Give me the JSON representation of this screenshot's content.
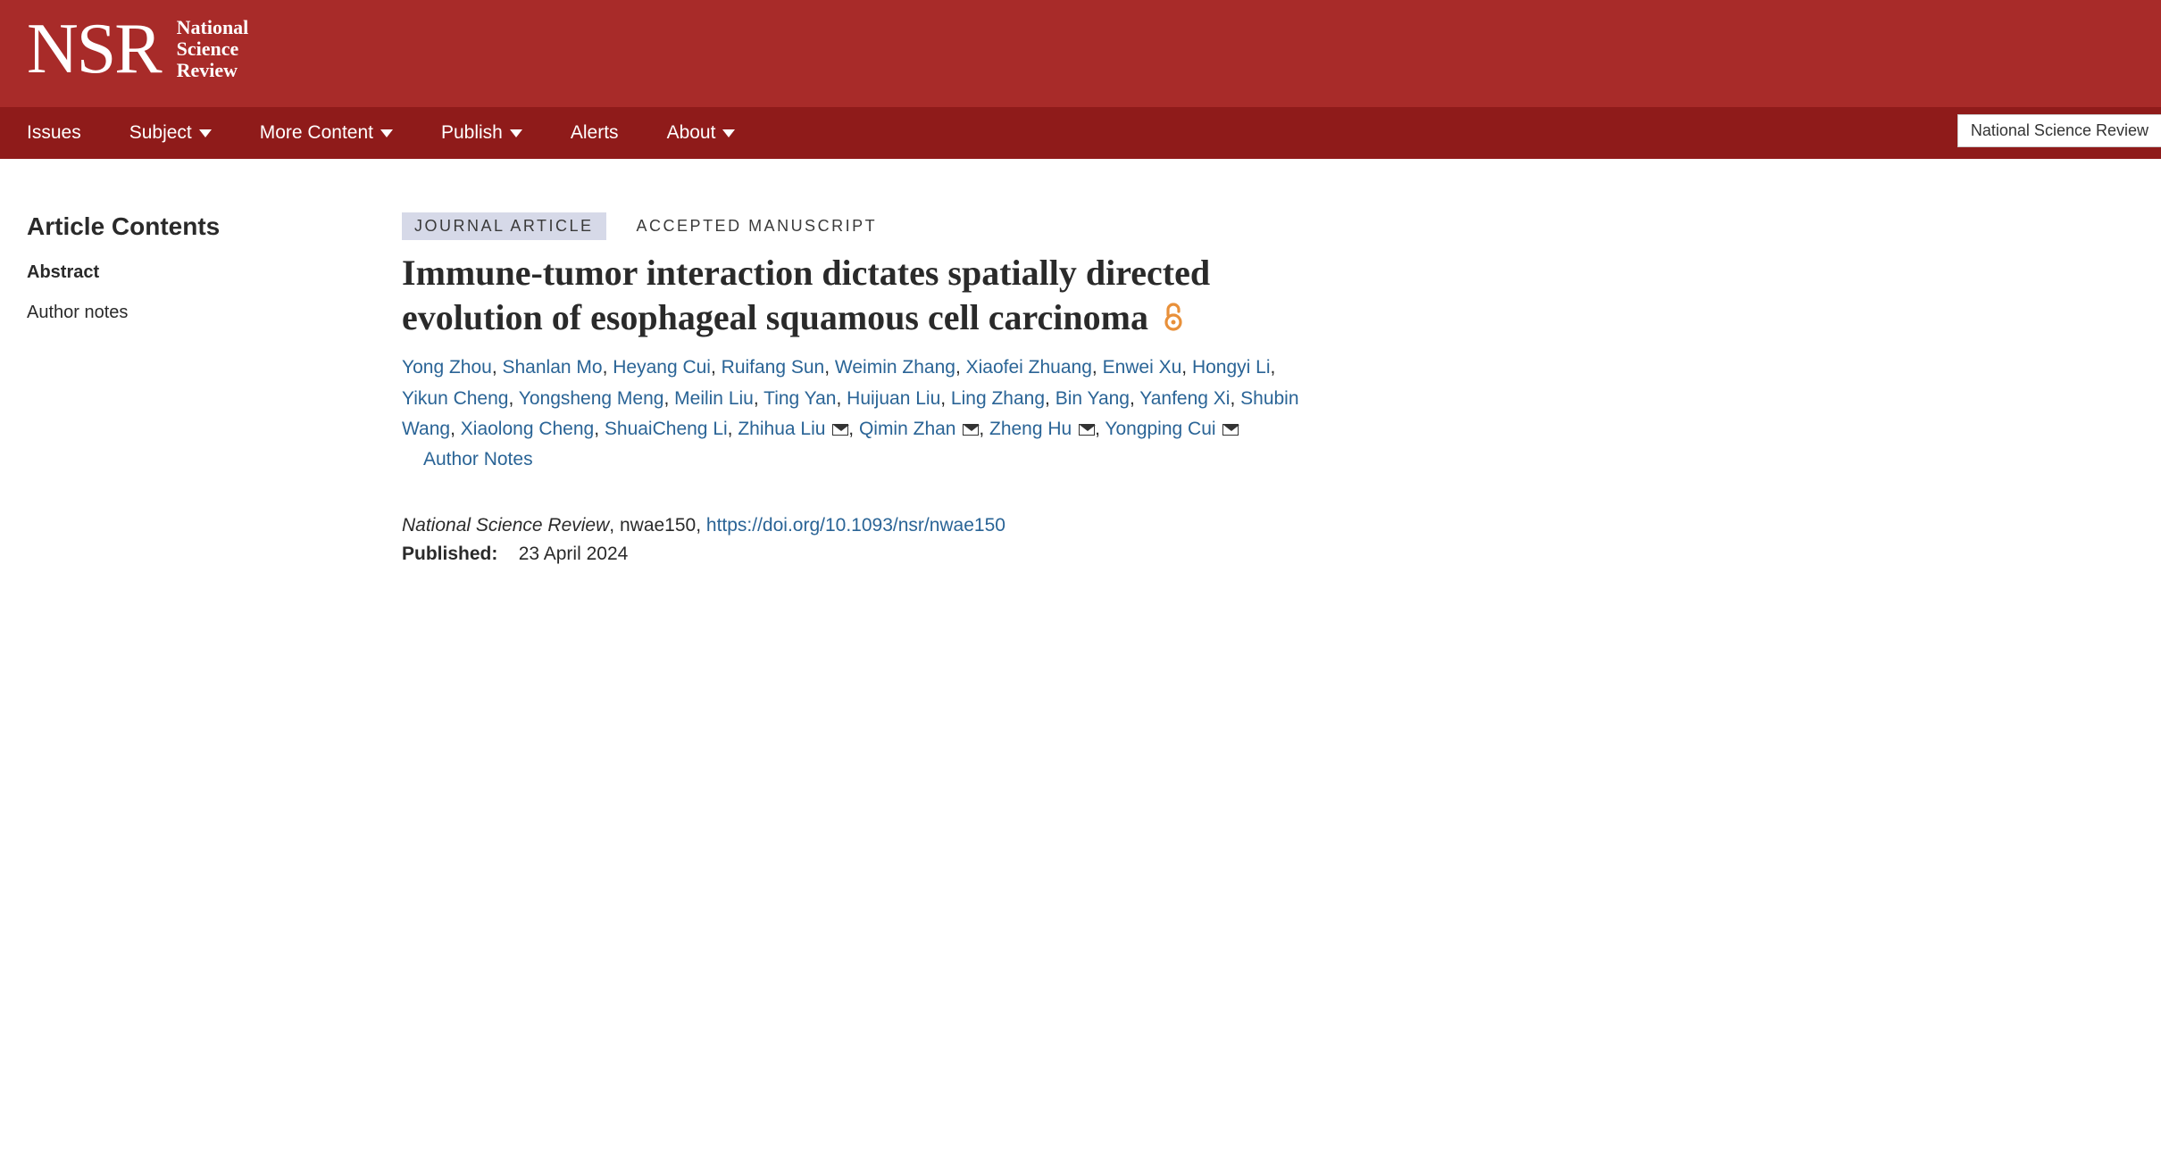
{
  "brand": {
    "mark": "NSR",
    "line1": "National",
    "line2": "Science",
    "line3": "Review"
  },
  "nav": {
    "issues": "Issues",
    "subject": "Subject",
    "more": "More Content",
    "publish": "Publish",
    "alerts": "Alerts",
    "about": "About",
    "search_context": "National Science Review"
  },
  "sidebar": {
    "heading": "Article Contents",
    "abstract": "Abstract",
    "author_notes": "Author notes"
  },
  "article": {
    "badge_type": "JOURNAL ARTICLE",
    "badge_status": "ACCEPTED MANUSCRIPT",
    "title": "Immune-tumor interaction dictates spatially directed evolution of esophageal squamous cell carcinoma",
    "authors": [
      {
        "name": "Yong Zhou",
        "mail": false
      },
      {
        "name": "Shanlan Mo",
        "mail": false
      },
      {
        "name": "Heyang Cui",
        "mail": false
      },
      {
        "name": "Ruifang Sun",
        "mail": false
      },
      {
        "name": "Weimin Zhang",
        "mail": false
      },
      {
        "name": "Xiaofei Zhuang",
        "mail": false
      },
      {
        "name": "Enwei Xu",
        "mail": false
      },
      {
        "name": "Hongyi Li",
        "mail": false
      },
      {
        "name": "Yikun Cheng",
        "mail": false
      },
      {
        "name": "Yongsheng Meng",
        "mail": false
      },
      {
        "name": "Meilin Liu",
        "mail": false
      },
      {
        "name": "Ting Yan",
        "mail": false
      },
      {
        "name": "Huijuan Liu",
        "mail": false
      },
      {
        "name": "Ling Zhang",
        "mail": false
      },
      {
        "name": "Bin Yang",
        "mail": false
      },
      {
        "name": "Yanfeng Xi",
        "mail": false
      },
      {
        "name": "Shubin Wang",
        "mail": false
      },
      {
        "name": "Xiaolong Cheng",
        "mail": false
      },
      {
        "name": "ShuaiCheng Li",
        "mail": false
      },
      {
        "name": "Zhihua Liu",
        "mail": true
      },
      {
        "name": "Qimin Zhan",
        "mail": true
      },
      {
        "name": "Zheng Hu",
        "mail": true
      },
      {
        "name": "Yongping Cui",
        "mail": true
      }
    ],
    "author_notes_label": "Author Notes",
    "journal": "National Science Review",
    "article_id": "nwae150",
    "doi": "https://doi.org/10.1093/nsr/nwae150",
    "published_label": "Published:",
    "published_date": "23 April 2024"
  },
  "colors": {
    "header_bg": "#a82b29",
    "nav_bg": "#8f1b1a",
    "link": "#2a6496",
    "badge_bg": "#d6d9e8",
    "oa_icon": "#e8903a"
  }
}
